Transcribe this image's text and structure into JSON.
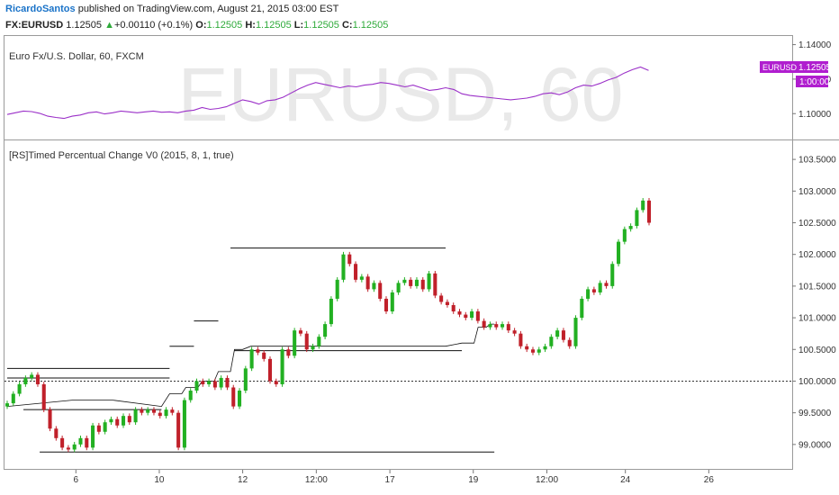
{
  "header": {
    "author": "RicardoSantos",
    "published_text": " published on TradingView.com, August 21, 2015 03:00 EST",
    "symbol": "FX:EURUSD",
    "last": "1.12505",
    "change_arrow": "▲",
    "change": "+0.00110 (+0.1%)",
    "o_label": "O:",
    "o_value": "1.12505",
    "h_label": "H:",
    "h_value": "1.12505",
    "l_label": "L:",
    "l_value": "1.12505",
    "c_label": "C:",
    "c_value": "1.12505"
  },
  "colors": {
    "price_line": "#9b30c8",
    "bull": "#22b022",
    "bear": "#c0202a",
    "level": "#111111",
    "badge": "#b01ecf"
  },
  "chart_data": [
    {
      "type": "line",
      "title": "Euro Fx/U.S. Dollar, 60, FXCM",
      "watermark": "EURUSD, 60",
      "price_badge_symbol": "EURUSD",
      "price_badge_value": "1.12505",
      "time_badge": "1:00:00",
      "ylim": [
        1.085,
        1.145
      ],
      "yticks": [
        "1.14000",
        "1.12000",
        "1.10000"
      ],
      "ytick_values": [
        1.14,
        1.12,
        1.1
      ],
      "x": [
        0,
        2,
        4,
        6,
        8,
        10,
        12,
        14,
        16,
        18,
        20,
        22,
        24,
        26,
        28,
        30,
        32,
        34,
        36,
        38,
        40,
        42,
        44,
        46,
        48,
        50,
        52,
        54,
        56,
        58,
        60,
        62,
        64,
        66,
        68,
        70,
        72,
        74,
        76,
        78,
        80,
        82,
        84,
        86,
        88,
        90,
        92,
        94,
        96,
        98,
        100,
        102,
        104,
        106,
        108,
        110,
        112,
        114,
        116,
        118,
        120,
        122,
        124,
        126,
        128,
        130,
        132,
        134,
        136,
        138,
        140,
        142,
        144,
        146,
        148,
        150,
        152,
        154,
        156,
        158
      ],
      "values": [
        1.0995,
        1.1005,
        1.1015,
        1.1012,
        1.1002,
        1.0985,
        1.0978,
        1.0972,
        1.0985,
        1.0992,
        1.1005,
        1.101,
        1.0998,
        1.1005,
        1.1015,
        1.101,
        1.1005,
        1.101,
        1.1015,
        1.1008,
        1.101,
        1.1005,
        1.1015,
        1.102,
        1.1035,
        1.1025,
        1.103,
        1.104,
        1.106,
        1.108,
        1.107,
        1.1055,
        1.1075,
        1.108,
        1.1095,
        1.112,
        1.1145,
        1.1165,
        1.118,
        1.117,
        1.116,
        1.115,
        1.116,
        1.1155,
        1.1165,
        1.117,
        1.118,
        1.1175,
        1.1165,
        1.1155,
        1.1165,
        1.115,
        1.1135,
        1.114,
        1.115,
        1.114,
        1.1115,
        1.1105,
        1.11,
        1.1095,
        1.109,
        1.1085,
        1.108,
        1.1085,
        1.109,
        1.11,
        1.1115,
        1.112,
        1.111,
        1.1125,
        1.115,
        1.1165,
        1.116,
        1.1175,
        1.1195,
        1.121,
        1.1235,
        1.1255,
        1.127,
        1.125
      ]
    },
    {
      "type": "candlestick",
      "title": "[RS]Timed Percentual Change V0 (2015, 8, 1, true)",
      "ylim": [
        98.6,
        103.8
      ],
      "yticks": [
        "103.5000",
        "103.0000",
        "102.5000",
        "102.0000",
        "101.5000",
        "101.0000",
        "100.5000",
        "100.0000",
        "99.5000",
        "99.0000"
      ],
      "ytick_values": [
        103.5,
        103.0,
        102.5,
        102.0,
        101.5,
        101.0,
        100.5,
        100.0,
        99.5,
        99.0
      ],
      "baseline": 100.0,
      "xticks": [
        "6",
        "10",
        "12",
        "12:00",
        "17",
        "19",
        "12:00",
        "24",
        "26"
      ],
      "xtick_positions": [
        14,
        31,
        48,
        63,
        78,
        95,
        110,
        126,
        143
      ],
      "x_count": 160,
      "levels": [
        {
          "x0": 0,
          "x1": 40,
          "y": 100.2
        },
        {
          "x0": 0,
          "x1": 40,
          "y": 100.05
        },
        {
          "x0": 4,
          "x1": 38,
          "y": 99.55
        },
        {
          "x0": 8,
          "x1": 120,
          "y": 98.88
        },
        {
          "x0": 40,
          "x1": 46,
          "y": 100.55
        },
        {
          "x0": 46,
          "x1": 52,
          "y": 100.95
        },
        {
          "x0": 55,
          "x1": 108,
          "y": 102.1
        },
        {
          "x0": 56,
          "x1": 112,
          "y": 100.48
        }
      ],
      "step_line": {
        "x": [
          0,
          8,
          16,
          26,
          38,
          40,
          43,
          44,
          47,
          48,
          51,
          52,
          55,
          56,
          58,
          60,
          63,
          66,
          75,
          82,
          95,
          103,
          108,
          112,
          115,
          116,
          118,
          119,
          120
        ],
        "values": [
          99.6,
          99.65,
          99.7,
          99.7,
          99.6,
          99.8,
          99.8,
          99.9,
          99.9,
          100.0,
          100.0,
          100.15,
          100.15,
          100.5,
          100.5,
          100.55,
          100.55,
          100.55,
          100.55,
          100.55,
          100.55,
          100.55,
          100.55,
          100.6,
          100.6,
          100.85,
          100.85,
          100.9,
          100.9
        ]
      },
      "closes": [
        99.65,
        99.8,
        99.95,
        100.05,
        100.1,
        99.95,
        99.55,
        99.25,
        99.1,
        98.95,
        98.92,
        99.0,
        99.1,
        98.95,
        99.3,
        99.2,
        99.35,
        99.4,
        99.3,
        99.45,
        99.35,
        99.55,
        99.5,
        99.55,
        99.5,
        99.45,
        99.55,
        99.5,
        98.95,
        99.7,
        99.85,
        100.0,
        99.95,
        100.0,
        99.9,
        100.05,
        99.9,
        99.6,
        99.85,
        100.2,
        100.5,
        100.45,
        100.35,
        100.0,
        99.95,
        100.5,
        100.4,
        100.8,
        100.75,
        100.5,
        100.55,
        100.7,
        100.9,
        101.3,
        101.6,
        102.0,
        101.85,
        101.6,
        101.65,
        101.45,
        101.55,
        101.3,
        101.1,
        101.4,
        101.55,
        101.6,
        101.5,
        101.6,
        101.45,
        101.7,
        101.35,
        101.25,
        101.2,
        101.1,
        101.05,
        101.0,
        101.1,
        100.95,
        100.85,
        100.9,
        100.85,
        100.9,
        100.8,
        100.75,
        100.55,
        100.5,
        100.45,
        100.5,
        100.55,
        100.7,
        100.8,
        100.65,
        100.55,
        101.0,
        101.3,
        101.45,
        101.4,
        101.55,
        101.5,
        101.85,
        102.2,
        102.4,
        102.45,
        102.7,
        102.85,
        102.5
      ]
    }
  ]
}
